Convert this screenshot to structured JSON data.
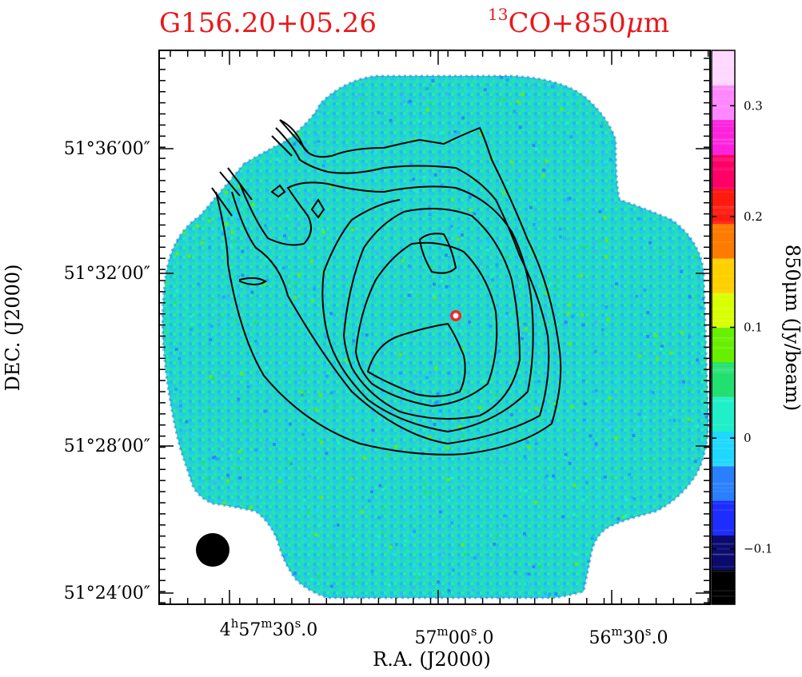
{
  "title": {
    "source": "G156.20+05.26",
    "tracer_sup": "13",
    "tracer_main": "CO+850",
    "tracer_mu": "μ",
    "tracer_unit": "m"
  },
  "axes": {
    "xlabel": "R.A.  (J2000)",
    "ylabel": "DEC.  (J2000)",
    "colorbar_label": "850μm  (Jy/beam)"
  },
  "x_ticks": [
    {
      "h": "4",
      "hs": "h",
      "m": "57",
      "ms": "m",
      "s": "30",
      "ss": "s",
      "frac": ".0"
    },
    {
      "h": "",
      "hs": "",
      "m": "57",
      "ms": "m",
      "s": "00",
      "ss": "s",
      "frac": ".0"
    },
    {
      "h": "",
      "hs": "",
      "m": "56",
      "ms": "m",
      "s": "30",
      "ss": "s",
      "frac": ".0"
    }
  ],
  "y_ticks": [
    "51°36′00″",
    "51°32′00″",
    "51°28′00″",
    "51°24′00″"
  ],
  "colorbar": {
    "ticks": [
      "0.3",
      "0.2",
      "0.1",
      "0",
      "−0.1"
    ],
    "range": [
      -0.15,
      0.35
    ],
    "colors": [
      "#000000",
      "#0b0b6e",
      "#1e2cff",
      "#2a7fff",
      "#1fd8ff",
      "#20f0c8",
      "#22e070",
      "#66f000",
      "#d8ff00",
      "#ffd000",
      "#ff7a00",
      "#ff1a10",
      "#ff0066",
      "#ff22dd",
      "#ff88ff",
      "#ffd8ff"
    ]
  },
  "chart_data": {
    "type": "heatmap",
    "title": "G156.20+05.26   13CO+850μm",
    "xlabel": "R.A.  (J2000)",
    "ylabel": "DEC.  (J2000)",
    "colorbar_label": "850μm  (Jy/beam)",
    "x_tick_labels": [
      "4h57m30s.0",
      "57m00s.0",
      "56m30s.0"
    ],
    "y_tick_labels": [
      "51°36′00″",
      "51°32′00″",
      "51°28′00″",
      "51°24′00″"
    ],
    "colorbar_ticks": [
      0.3,
      0.2,
      0.1,
      0,
      -0.1
    ],
    "colorbar_range": [
      -0.15,
      0.35
    ],
    "background_level_jy_per_beam": 0.0,
    "compact_source": {
      "ra": "4h56m57s",
      "dec": "51°30′50″",
      "peak_jy_per_beam": 0.3
    },
    "contours": "13CO integrated intensity, 7 levels, peak near 4h57m00s +51°30′",
    "beam": "filled circle, lower-left"
  }
}
